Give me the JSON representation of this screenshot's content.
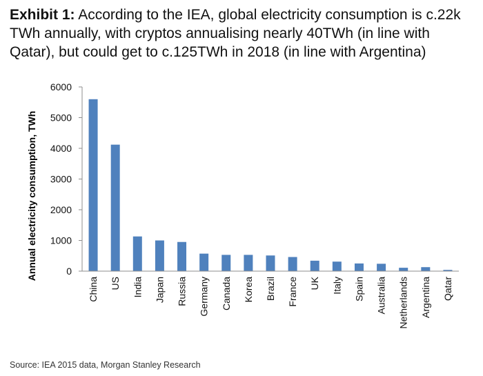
{
  "header": {
    "exhibit_label": "Exhibit 1:",
    "title_text": "According to the IEA, global electricity consumption is c.22k TWh annually, with cryptos annualising nearly 40TWh (in line with Qatar), but could get to c.125TWh in 2018 (in line with Argentina)"
  },
  "chart_data": {
    "type": "bar",
    "title": "",
    "xlabel": "",
    "ylabel": "Annual electricity consumption, TWh",
    "ylim": [
      0,
      6000
    ],
    "yticks": [
      0,
      1000,
      2000,
      3000,
      4000,
      5000,
      6000
    ],
    "grid": false,
    "bar_color": "#4f81bd",
    "categories": [
      "China",
      "US",
      "India",
      "Japan",
      "Russia",
      "Germany",
      "Canada",
      "Korea",
      "Brazil",
      "France",
      "UK",
      "Italy",
      "Spain",
      "Australia",
      "Netherlands",
      "Argentina",
      "Qatar"
    ],
    "values": [
      5600,
      4120,
      1130,
      1000,
      950,
      570,
      530,
      530,
      510,
      460,
      340,
      310,
      250,
      240,
      110,
      130,
      40
    ]
  },
  "footer": {
    "source": "Source: IEA 2015 data, Morgan Stanley Research"
  }
}
